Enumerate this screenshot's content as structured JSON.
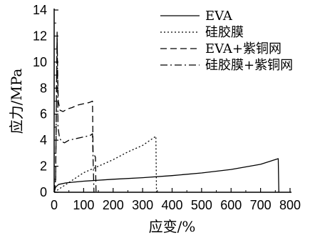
{
  "chart_data": {
    "type": "line",
    "xlabel": "应变/%",
    "ylabel": "应力/MPa",
    "xlim": [
      0,
      800
    ],
    "ylim": [
      0,
      14
    ],
    "xticks": [
      0,
      100,
      200,
      300,
      400,
      500,
      600,
      700,
      800
    ],
    "yticks": [
      0,
      2,
      4,
      6,
      8,
      10,
      12,
      14
    ],
    "grid": false,
    "legend_position": "top-right",
    "series": [
      {
        "name": "EVA",
        "dash": "solid",
        "points": [
          [
            0,
            0
          ],
          [
            5,
            0.4
          ],
          [
            15,
            0.6
          ],
          [
            40,
            0.72
          ],
          [
            100,
            0.85
          ],
          [
            200,
            1.0
          ],
          [
            300,
            1.12
          ],
          [
            400,
            1.28
          ],
          [
            500,
            1.48
          ],
          [
            600,
            1.75
          ],
          [
            700,
            2.15
          ],
          [
            760,
            2.58
          ],
          [
            762,
            0
          ]
        ]
      },
      {
        "name": "硅胶膜",
        "dash": "dotted",
        "points": [
          [
            0,
            0
          ],
          [
            50,
            0.75
          ],
          [
            100,
            1.5
          ],
          [
            150,
            2.0
          ],
          [
            200,
            2.5
          ],
          [
            250,
            3.1
          ],
          [
            300,
            3.6
          ],
          [
            345,
            4.3
          ],
          [
            347,
            0
          ]
        ]
      },
      {
        "name": "EVA+紫铜网",
        "dash": "dashed",
        "points": [
          [
            0,
            0
          ],
          [
            5,
            1.0
          ],
          [
            8,
            8.0
          ],
          [
            10,
            12.0
          ],
          [
            12,
            9.0
          ],
          [
            14,
            7.0
          ],
          [
            20,
            6.3
          ],
          [
            30,
            6.2
          ],
          [
            45,
            6.4
          ],
          [
            60,
            6.5
          ],
          [
            80,
            6.7
          ],
          [
            100,
            6.8
          ],
          [
            120,
            6.9
          ],
          [
            130,
            7.0
          ],
          [
            132,
            3.0
          ],
          [
            140,
            2.7
          ],
          [
            142,
            0
          ]
        ]
      },
      {
        "name": "硅胶膜+紫铜网",
        "dash": "dashdot",
        "points": [
          [
            0,
            0
          ],
          [
            5,
            1.0
          ],
          [
            10,
            12.3
          ],
          [
            13,
            5.0
          ],
          [
            18,
            4.2
          ],
          [
            25,
            3.9
          ],
          [
            35,
            3.8
          ],
          [
            50,
            4.0
          ],
          [
            70,
            4.1
          ],
          [
            90,
            4.2
          ],
          [
            110,
            4.3
          ],
          [
            125,
            4.4
          ],
          [
            130,
            4.5
          ],
          [
            132,
            2.5
          ],
          [
            135,
            0
          ]
        ]
      }
    ]
  }
}
